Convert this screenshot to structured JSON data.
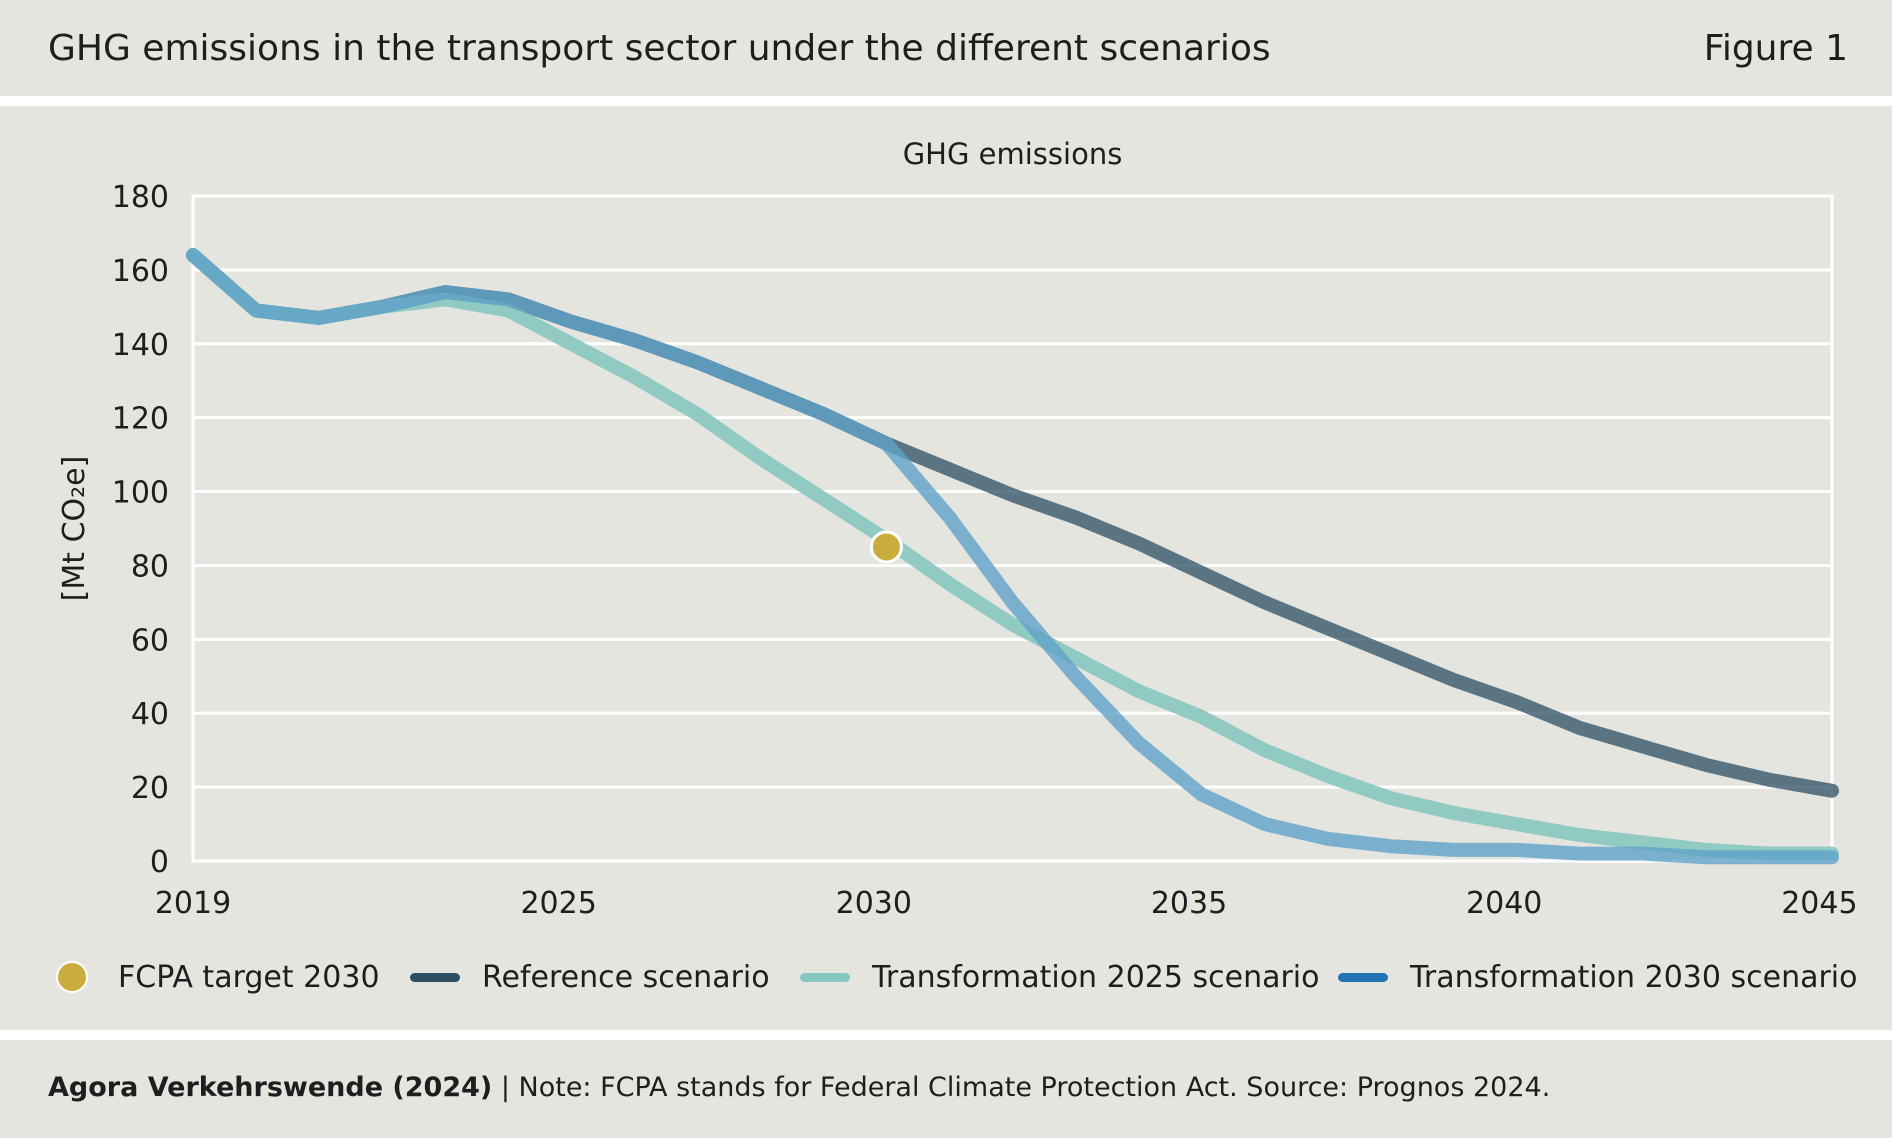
{
  "header": {
    "title": "GHG emissions in the transport sector under the different scenarios",
    "figure": "Figure 1"
  },
  "footer": {
    "source": "Agora Verkehrswende (2024)",
    "note": "| Note: FCPA stands for Federal Climate Protection Act. Source: Prognos 2024."
  },
  "colors": {
    "background": "#e5e5e0",
    "reference": "#2b4e63",
    "transformation_2025": "#86c6c0",
    "transformation_2030": "#5fa3c8",
    "target": "#c9ac3c",
    "grid": "#ffffff"
  },
  "chart_data": {
    "type": "line",
    "title": "GHG emissions",
    "ylabel": "[Mt CO₂e]",
    "xlabel": "",
    "xlim": [
      2019,
      2045
    ],
    "ylim": [
      0,
      180
    ],
    "xticks": [
      "2019",
      "2025",
      "2030",
      "2035",
      "2040",
      "2045"
    ],
    "xtick_values": [
      2019,
      2024.8,
      2029.8,
      2034.8,
      2039.8,
      2044.8
    ],
    "yticks": [
      "0",
      "20",
      "40",
      "60",
      "80",
      "100",
      "120",
      "140",
      "160",
      "180"
    ],
    "grid": true,
    "legend": [
      "FCPA target 2030",
      "Reference scenario",
      "Transformation 2025 scenario",
      "Transformation 2030 scenario"
    ],
    "legend_position": "bottom",
    "series": [
      {
        "name": "Reference scenario",
        "x": [
          2019,
          2020,
          2021,
          2022,
          2023,
          2024,
          2025,
          2026,
          2027,
          2028,
          2029,
          2030,
          2031,
          2032,
          2033,
          2034,
          2035,
          2036,
          2037,
          2038,
          2039,
          2040,
          2041,
          2042,
          2043,
          2044,
          2045
        ],
        "y": [
          164,
          149,
          147,
          150,
          154,
          152,
          146,
          141,
          135,
          128,
          121,
          113,
          106,
          99,
          93,
          86,
          78,
          70,
          63,
          56,
          49,
          43,
          36,
          31,
          26,
          22,
          19
        ]
      },
      {
        "name": "Transformation 2025 scenario",
        "x": [
          2019,
          2020,
          2021,
          2022,
          2023,
          2024,
          2025,
          2026,
          2027,
          2028,
          2029,
          2030,
          2031,
          2032,
          2033,
          2034,
          2035,
          2036,
          2037,
          2038,
          2039,
          2040,
          2041,
          2042,
          2043,
          2044,
          2045
        ],
        "y": [
          164,
          149,
          147,
          150,
          152,
          149,
          140,
          131,
          121,
          109,
          98,
          87,
          75,
          64,
          55,
          46,
          39,
          30,
          23,
          17,
          13,
          10,
          7,
          5,
          3,
          2,
          2
        ]
      },
      {
        "name": "Transformation 2030 scenario",
        "x": [
          2019,
          2020,
          2021,
          2022,
          2023,
          2024,
          2025,
          2026,
          2027,
          2028,
          2029,
          2030,
          2031,
          2032,
          2033,
          2034,
          2035,
          2036,
          2037,
          2038,
          2039,
          2040,
          2041,
          2042,
          2043,
          2044,
          2045
        ],
        "y": [
          164,
          149,
          147,
          150,
          154,
          152,
          146,
          141,
          135,
          128,
          121,
          113,
          93,
          70,
          50,
          32,
          18,
          10,
          6,
          4,
          3,
          3,
          2,
          2,
          1,
          1,
          1
        ]
      }
    ],
    "markers": [
      {
        "name": "FCPA target 2030",
        "x": 2030,
        "y": 85
      }
    ]
  }
}
